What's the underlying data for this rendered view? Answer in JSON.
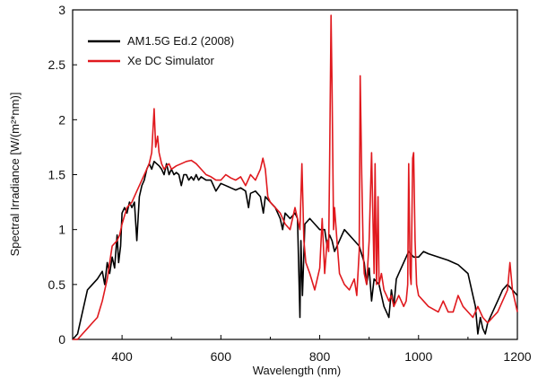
{
  "chart_data": {
    "type": "line",
    "xlabel": "Wavelength (nm)",
    "ylabel": "Spectral Irradiance [W/(m²*nm)]",
    "xlim": [
      300,
      1200
    ],
    "ylim": [
      0,
      3
    ],
    "xticks": [
      400,
      600,
      800,
      1000,
      1200
    ],
    "xtick_labels": [
      "400",
      "600",
      "800",
      "1000",
      "1200"
    ],
    "yticks": [
      0,
      0.5,
      1,
      1.5,
      2,
      2.5,
      3
    ],
    "ytick_labels": [
      "0",
      "0.5",
      "1",
      "1.5",
      "2",
      "2.5",
      "3"
    ],
    "grid": false,
    "legend_position": "top-left",
    "series": [
      {
        "name": "AM1.5G Ed.2 (2008)",
        "color": "#000000",
        "x": [
          300,
          310,
          320,
          330,
          340,
          350,
          360,
          365,
          370,
          375,
          380,
          385,
          390,
          393,
          397,
          400,
          405,
          410,
          415,
          420,
          425,
          430,
          435,
          440,
          445,
          450,
          455,
          460,
          465,
          470,
          475,
          480,
          485,
          490,
          495,
          500,
          505,
          510,
          515,
          520,
          525,
          530,
          535,
          540,
          545,
          550,
          555,
          560,
          570,
          580,
          590,
          600,
          610,
          620,
          630,
          640,
          650,
          656,
          660,
          670,
          680,
          686,
          690,
          700,
          710,
          720,
          725,
          730,
          740,
          750,
          755,
          760,
          762,
          765,
          770,
          780,
          790,
          800,
          810,
          815,
          820,
          825,
          830,
          840,
          850,
          860,
          870,
          880,
          890,
          895,
          900,
          905,
          910,
          920,
          930,
          935,
          940,
          945,
          950,
          955,
          960,
          970,
          980,
          990,
          1000,
          1010,
          1020,
          1040,
          1060,
          1080,
          1100,
          1110,
          1115,
          1120,
          1125,
          1130,
          1135,
          1140,
          1150,
          1160,
          1170,
          1180,
          1190,
          1200
        ],
        "y": [
          0,
          0.05,
          0.25,
          0.45,
          0.5,
          0.55,
          0.62,
          0.5,
          0.7,
          0.6,
          0.75,
          0.65,
          0.95,
          0.7,
          0.85,
          1.15,
          1.2,
          1.15,
          1.25,
          1.2,
          1.25,
          0.9,
          1.3,
          1.4,
          1.45,
          1.55,
          1.6,
          1.55,
          1.62,
          1.6,
          1.58,
          1.55,
          1.5,
          1.6,
          1.5,
          1.55,
          1.5,
          1.52,
          1.5,
          1.4,
          1.5,
          1.5,
          1.45,
          1.48,
          1.45,
          1.5,
          1.45,
          1.48,
          1.45,
          1.45,
          1.35,
          1.42,
          1.4,
          1.38,
          1.36,
          1.38,
          1.35,
          1.2,
          1.33,
          1.35,
          1.3,
          1.15,
          1.3,
          1.25,
          1.2,
          1.1,
          1.0,
          1.15,
          1.1,
          1.15,
          1.1,
          0.2,
          0.9,
          0.4,
          1.05,
          1.1,
          1.05,
          1.0,
          1.0,
          0.85,
          0.95,
          0.9,
          0.8,
          0.9,
          1.0,
          0.95,
          0.9,
          0.85,
          0.7,
          0.5,
          0.65,
          0.35,
          0.55,
          0.5,
          0.3,
          0.25,
          0.2,
          0.45,
          0.3,
          0.55,
          0.6,
          0.7,
          0.8,
          0.75,
          0.75,
          0.8,
          0.78,
          0.75,
          0.72,
          0.68,
          0.6,
          0.4,
          0.3,
          0.05,
          0.2,
          0.1,
          0.05,
          0.15,
          0.25,
          0.35,
          0.45,
          0.5,
          0.45,
          0.4
        ]
      },
      {
        "name": "Xe DC Simulator",
        "color": "#e0191e",
        "x": [
          300,
          310,
          320,
          330,
          340,
          350,
          360,
          370,
          380,
          390,
          395,
          400,
          410,
          420,
          430,
          440,
          450,
          455,
          460,
          465,
          468,
          472,
          475,
          480,
          485,
          490,
          495,
          500,
          510,
          520,
          530,
          540,
          550,
          560,
          570,
          580,
          590,
          600,
          610,
          620,
          630,
          640,
          650,
          660,
          670,
          680,
          685,
          690,
          695,
          700,
          710,
          720,
          730,
          740,
          750,
          760,
          764,
          768,
          772,
          780,
          790,
          800,
          805,
          810,
          815,
          818,
          820,
          823,
          825,
          828,
          830,
          835,
          840,
          850,
          860,
          870,
          875,
          880,
          882,
          885,
          888,
          890,
          895,
          900,
          905,
          910,
          912,
          915,
          918,
          920,
          925,
          930,
          935,
          940,
          945,
          950,
          955,
          960,
          965,
          970,
          975,
          978,
          980,
          983,
          985,
          988,
          990,
          993,
          996,
          1000,
          1010,
          1020,
          1040,
          1050,
          1060,
          1070,
          1080,
          1090,
          1100,
          1110,
          1120,
          1130,
          1140,
          1150,
          1160,
          1170,
          1180,
          1185,
          1190,
          1200
        ],
        "y": [
          0,
          0,
          0.05,
          0.1,
          0.15,
          0.2,
          0.35,
          0.55,
          0.85,
          0.9,
          0.95,
          1.05,
          1.2,
          1.25,
          1.35,
          1.45,
          1.55,
          1.6,
          1.7,
          2.1,
          1.75,
          1.85,
          1.7,
          1.6,
          1.55,
          1.58,
          1.6,
          1.55,
          1.58,
          1.6,
          1.62,
          1.63,
          1.6,
          1.55,
          1.5,
          1.48,
          1.45,
          1.45,
          1.5,
          1.47,
          1.45,
          1.48,
          1.4,
          1.5,
          1.45,
          1.55,
          1.65,
          1.55,
          1.3,
          1.25,
          1.2,
          1.15,
          1.05,
          1.0,
          1.2,
          1.0,
          1.6,
          0.9,
          0.7,
          0.6,
          0.45,
          0.65,
          1.1,
          0.6,
          0.9,
          0.8,
          1.6,
          2.95,
          2.3,
          1.0,
          1.2,
          0.9,
          0.6,
          0.5,
          0.45,
          0.55,
          0.4,
          0.8,
          2.4,
          1.5,
          0.8,
          0.6,
          0.5,
          0.9,
          1.7,
          0.6,
          1.6,
          0.5,
          1.3,
          0.5,
          0.6,
          0.45,
          0.4,
          0.35,
          0.4,
          0.3,
          0.35,
          0.4,
          0.35,
          0.3,
          0.35,
          0.5,
          1.6,
          0.6,
          0.5,
          1.65,
          1.7,
          0.9,
          0.5,
          0.4,
          0.35,
          0.3,
          0.25,
          0.35,
          0.25,
          0.25,
          0.4,
          0.3,
          0.25,
          0.2,
          0.3,
          0.2,
          0.15,
          0.2,
          0.25,
          0.35,
          0.45,
          0.7,
          0.45,
          0.25
        ]
      }
    ]
  }
}
